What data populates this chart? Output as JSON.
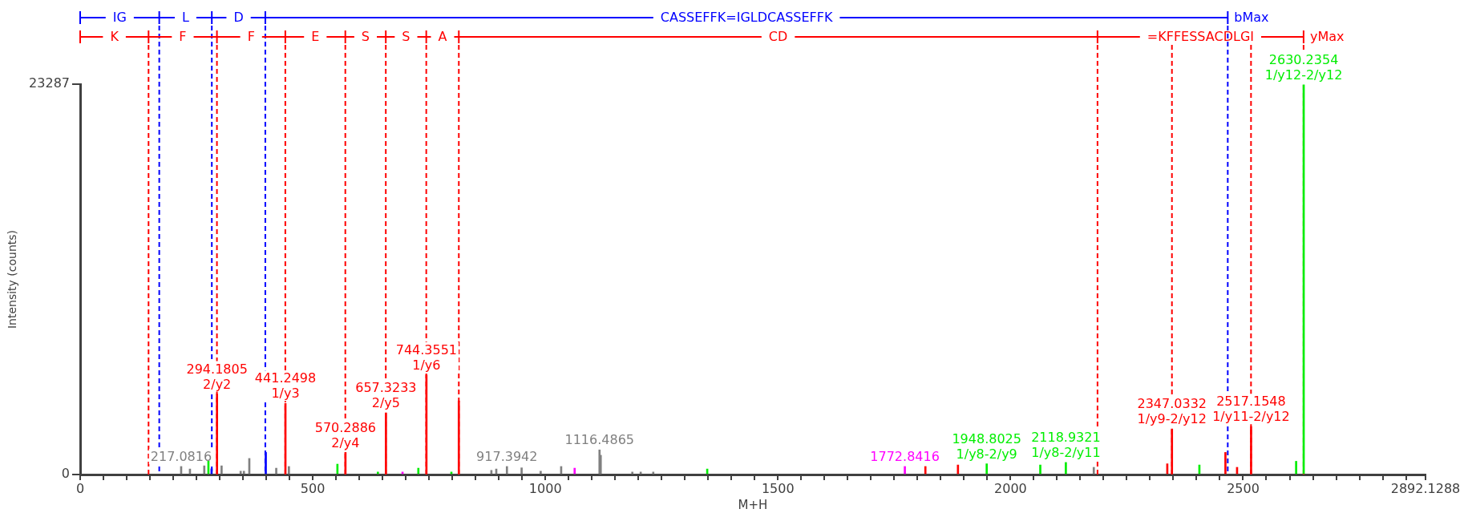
{
  "chart_data": {
    "type": "bar",
    "xlabel": "M+H",
    "ylabel": "Intensity (counts)",
    "xlim": [
      0,
      2892.1288
    ],
    "xticks": [
      0,
      {
        "value": 50,
        "label": null
      },
      {
        "value": 100,
        "label": null
      },
      {
        "value": 150,
        "label": null
      },
      {
        "value": 200,
        "label": null
      },
      {
        "value": 250,
        "label": null
      },
      {
        "value": 300,
        "label": null
      },
      {
        "value": 350,
        "label": null
      },
      {
        "value": 400,
        "label": null
      },
      {
        "value": 450,
        "label": null
      },
      500,
      {
        "value": 550,
        "label": null
      },
      {
        "value": 600,
        "label": null
      },
      {
        "value": 650,
        "label": null
      },
      {
        "value": 700,
        "label": null
      },
      {
        "value": 750,
        "label": null
      },
      {
        "value": 800,
        "label": null
      },
      {
        "value": 850,
        "label": null
      },
      {
        "value": 900,
        "label": null
      },
      {
        "value": 950,
        "label": null
      },
      1000,
      {
        "value": 1050,
        "label": null
      },
      {
        "value": 1100,
        "label": null
      },
      {
        "value": 1150,
        "label": null
      },
      {
        "value": 1200,
        "label": null
      },
      {
        "value": 1250,
        "label": null
      },
      {
        "value": 1300,
        "label": null
      },
      {
        "value": 1350,
        "label": null
      },
      {
        "value": 1400,
        "label": null
      },
      {
        "value": 1450,
        "label": null
      },
      1500,
      {
        "value": 1550,
        "label": null
      },
      {
        "value": 1600,
        "label": null
      },
      {
        "value": 1650,
        "label": null
      },
      {
        "value": 1700,
        "label": null
      },
      {
        "value": 1750,
        "label": null
      },
      {
        "value": 1800,
        "label": null
      },
      {
        "value": 1850,
        "label": null
      },
      {
        "value": 1900,
        "label": null
      },
      {
        "value": 1950,
        "label": null
      },
      2000,
      {
        "value": 2050,
        "label": null
      },
      {
        "value": 2100,
        "label": null
      },
      {
        "value": 2150,
        "label": null
      },
      {
        "value": 2200,
        "label": null
      },
      {
        "value": 2250,
        "label": null
      },
      {
        "value": 2300,
        "label": null
      },
      {
        "value": 2350,
        "label": null
      },
      {
        "value": 2400,
        "label": null
      },
      {
        "value": 2450,
        "label": null
      },
      2500,
      {
        "value": 2550,
        "label": null
      },
      {
        "value": 2600,
        "label": null
      },
      {
        "value": 2650,
        "label": null
      },
      {
        "value": 2700,
        "label": null
      },
      {
        "value": 2750,
        "label": null
      },
      {
        "value": 2800,
        "label": null
      },
      {
        "value": 2850,
        "label": null
      },
      2892.1288
    ],
    "ylim": [
      0,
      23287
    ],
    "yticks": [
      0,
      23287
    ],
    "series": [
      {
        "color": "#808080",
        "x": [
          217.0816,
          236,
          266.8,
          304,
          345,
          352,
          363.6,
          421.5,
          448.7,
          884,
          894.5,
          917.3942,
          949,
          990,
          1034,
          1116.4865,
          1119,
          1187,
          1205,
          1232,
          2179
        ],
        "values": [
          480,
          330,
          520,
          520,
          200,
          200,
          960,
          380,
          480,
          250,
          330,
          480,
          400,
          200,
          480,
          1470,
          1150,
          150,
          150,
          150,
          430
        ]
      },
      {
        "color": "#ff0000",
        "x": [
          294.1805,
          441.2498,
          570.2886,
          657.3233,
          744.3551,
          814,
          1817,
          1887,
          2337,
          2347.0332,
          2462,
          2487,
          2517.1548
        ],
        "values": [
          4800,
          4240,
          1320,
          3680,
          5940,
          4390,
          480,
          570,
          640,
          2720,
          1320,
          430,
          2860
        ]
      },
      {
        "color": "#00ee00",
        "x": [
          275.7,
          553,
          640,
          727,
          798,
          1348,
          1948.8025,
          2064,
          2118.9321,
          2406,
          2614,
          2630.2354
        ],
        "values": [
          810,
          620,
          150,
          380,
          150,
          330,
          640,
          570,
          720,
          570,
          790,
          23250
        ]
      },
      {
        "color": "#ff00ff",
        "x": [
          693,
          1063,
          1772.8416
        ],
        "values": [
          150,
          380,
          480
        ]
      },
      {
        "color": "#0000ff",
        "x": [
          282.5,
          399
        ],
        "values": [
          340,
          1320
        ]
      }
    ],
    "annotations": [
      {
        "text": "217.0816",
        "x": 217.0816,
        "y": 480
      },
      {
        "text": "917.3942",
        "x": 917.3942,
        "y": 480
      },
      {
        "text": "1116.4865",
        "x": 1116.4865,
        "y": 1470
      },
      {
        "text": "294.1805\n2/y2",
        "x": 294.1805,
        "y": 4800
      },
      {
        "text": "441.2498\n1/y3",
        "x": 441.2498,
        "y": 4240
      },
      {
        "text": "570.2886\n2/y4",
        "x": 570.2886,
        "y": 1320
      },
      {
        "text": "657.3233\n2/y5",
        "x": 657.3233,
        "y": 3680
      },
      {
        "text": "744.3551\n1/y6",
        "x": 744.3551,
        "y": 5940
      },
      {
        "text": "2347.0332\n1/y9-2/y12",
        "x": 2347.0332,
        "y": 2720
      },
      {
        "text": "2517.1548\n1/y11-2/y12",
        "x": 2517.1548,
        "y": 2860
      },
      {
        "text": "1948.8025\n1/y8-2/y9",
        "x": 1948.8025,
        "y": 640
      },
      {
        "text": "2118.9321\n1/y8-2/y11",
        "x": 2118.9321,
        "y": 720
      },
      {
        "text": "2630.2354\n1/y12-2/y12",
        "x": 2630.2354,
        "y": 23250
      },
      {
        "text": "1772.8416",
        "x": 1772.8416,
        "y": 480
      },
      "bMax",
      "yMax"
    ],
    "ref_lines": [
      {
        "axis": "x",
        "value": 170,
        "label": "IG",
        "color": "#0000ff",
        "line_style": "dashed"
      },
      {
        "axis": "x",
        "value": 283,
        "label": "L",
        "color": "#0000ff",
        "line_style": "dashed"
      },
      {
        "axis": "x",
        "value": 398,
        "label": "D",
        "color": "#0000ff",
        "line_style": "dashed"
      },
      {
        "axis": "x",
        "value": 2467,
        "label": "CASSEFFK=IGLDCASSEFFK",
        "color": "#0000ff",
        "line_style": "dashed"
      },
      {
        "axis": "x",
        "value": 147,
        "label": "K",
        "color": "#ff0000",
        "line_style": "dashed"
      },
      {
        "axis": "x",
        "value": 294,
        "label": "F",
        "color": "#ff0000",
        "line_style": "dashed"
      },
      {
        "axis": "x",
        "value": 441,
        "label": "F",
        "color": "#ff0000",
        "line_style": "dashed"
      },
      {
        "axis": "x",
        "value": 570,
        "label": "E",
        "color": "#ff0000",
        "line_style": "dashed"
      },
      {
        "axis": "x",
        "value": 657,
        "label": "S",
        "color": "#ff0000",
        "line_style": "dashed"
      },
      {
        "axis": "x",
        "value": 744,
        "label": "S",
        "color": "#ff0000",
        "line_style": "dashed"
      },
      {
        "axis": "x",
        "value": 814,
        "label": "A",
        "color": "#ff0000",
        "line_style": "dashed"
      },
      {
        "axis": "x",
        "value": 2187,
        "label": "CD",
        "color": "#ff0000",
        "line_style": "dashed"
      },
      {
        "axis": "x",
        "value": 2347,
        "color": "#ff0000",
        "line_style": "dashed"
      },
      {
        "axis": "x",
        "value": 2517,
        "color": "#ff0000",
        "line_style": "dashed"
      },
      {
        "axis": "x",
        "value": 2630,
        "label": "=KFFESSACDLGI",
        "color": "#ff0000",
        "line_style": "dashed"
      }
    ]
  }
}
